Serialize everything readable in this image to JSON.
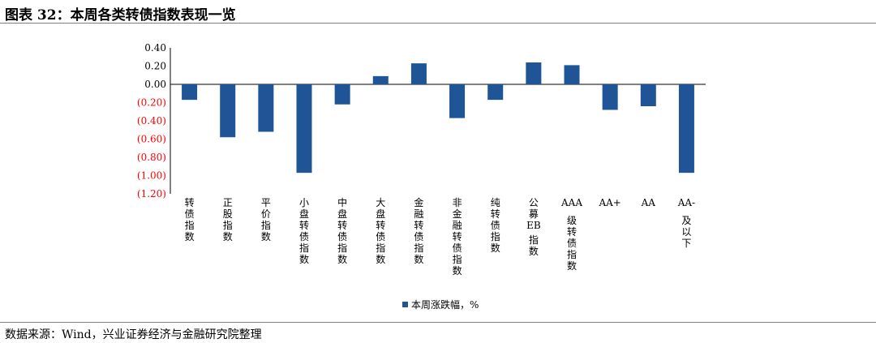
{
  "header": {
    "title": "图表 32：本周各类转债指数表现一览"
  },
  "footer": {
    "source": "数据来源：Wind，兴业证券经济与金融研究院整理"
  },
  "colors": {
    "bar": "#1f5597",
    "positive_tick": "#000000",
    "negative_tick": "#ff0000",
    "axis": "#000000"
  },
  "chart_data": {
    "type": "bar",
    "categories": [
      "转债指数",
      "正股指数",
      "平价指数",
      "小盘转债指数",
      "中盘转债指数",
      "大盘转债指数",
      "金融转债指数",
      "非金融转债指数",
      "纯转债指数",
      "公募EB指数",
      "AAA级转债指数",
      "AA+",
      "AA",
      "AA-及以下"
    ],
    "series": [
      {
        "name": "本周涨跌幅，%",
        "values": [
          -0.17,
          -0.58,
          -0.52,
          -0.97,
          -0.22,
          0.09,
          0.23,
          -0.37,
          -0.17,
          0.24,
          0.21,
          -0.28,
          -0.24,
          -0.97
        ]
      }
    ],
    "yticks": [
      "0.40",
      "0.20",
      "0.00",
      "(0.20)",
      "(0.40)",
      "(0.60)",
      "(0.80)",
      "(1.00)",
      "(1.20)"
    ],
    "ylim": [
      -1.2,
      0.4
    ],
    "legend_position": "bottom"
  }
}
